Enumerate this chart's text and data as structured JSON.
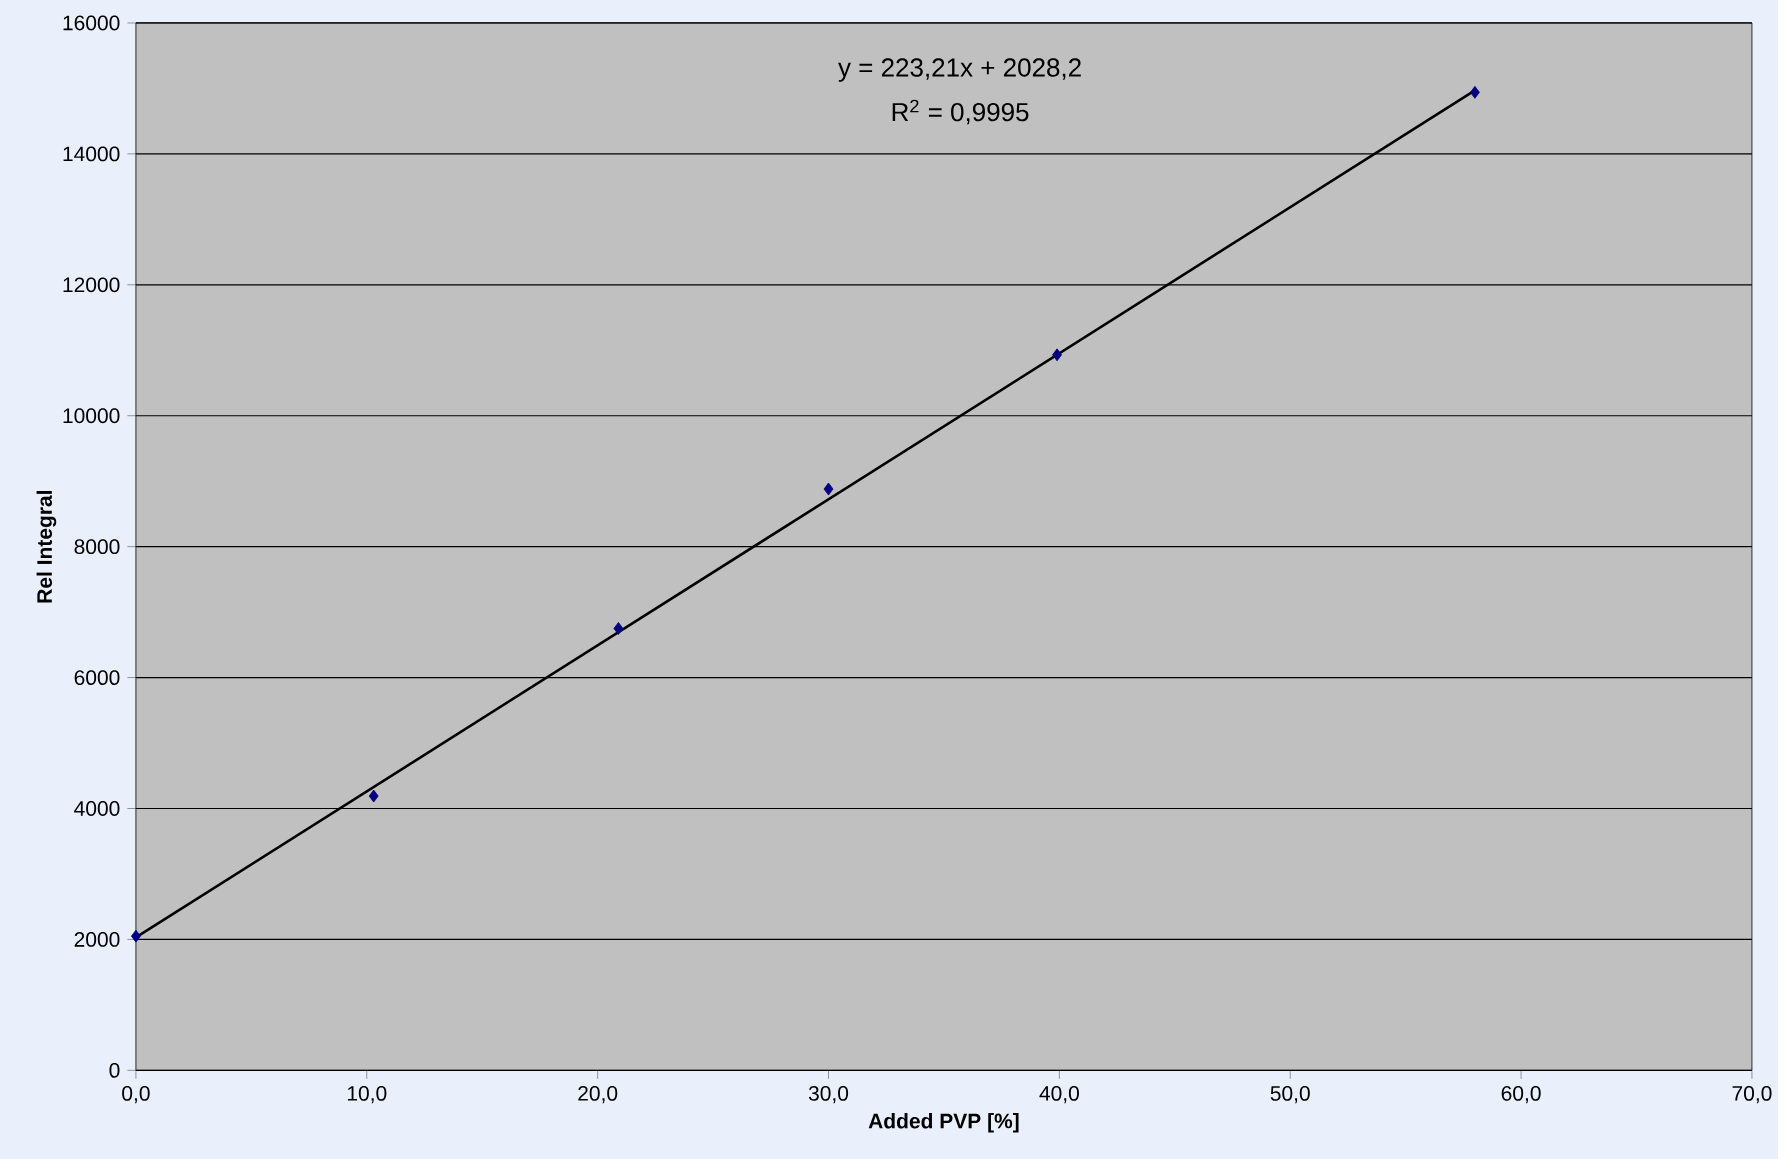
{
  "chart_data": {
    "type": "scatter",
    "xlabel": "Added PVP [%]",
    "ylabel": "Rel Integral",
    "annotations": [
      "y = 223,21x + 2028,2",
      "R$^{2}$ = 0,9995"
    ],
    "series": [
      {
        "color": "#000080",
        "marker": "diamond",
        "x": [
          0,
          10.3,
          20.9,
          30.0,
          39.9,
          58.0
        ],
        "values": [
          2050,
          4190,
          6750,
          8880,
          10930,
          14940
        ]
      },
      {
        "type": "line",
        "color": "#000000",
        "marker": "none",
        "line_style": "solid",
        "x": [
          0,
          58
        ],
        "values": [
          2030,
          14970
        ]
      }
    ],
    "xlim": [
      0,
      70
    ],
    "ylim": [
      0,
      16000
    ],
    "xticks": [
      {
        "value": 0,
        "label": "0,0"
      },
      {
        "value": 10,
        "label": "10,0"
      },
      {
        "value": 20,
        "label": "20,0"
      },
      {
        "value": 30,
        "label": "30,0"
      },
      {
        "value": 40,
        "label": "40,0"
      },
      {
        "value": 50,
        "label": "50,0"
      },
      {
        "value": 60,
        "label": "60,0"
      },
      {
        "value": 70,
        "label": "70,0"
      }
    ],
    "yticks": [
      0,
      2000,
      4000,
      6000,
      8000,
      10000,
      12000,
      14000,
      16000
    ],
    "grid": "y"
  }
}
